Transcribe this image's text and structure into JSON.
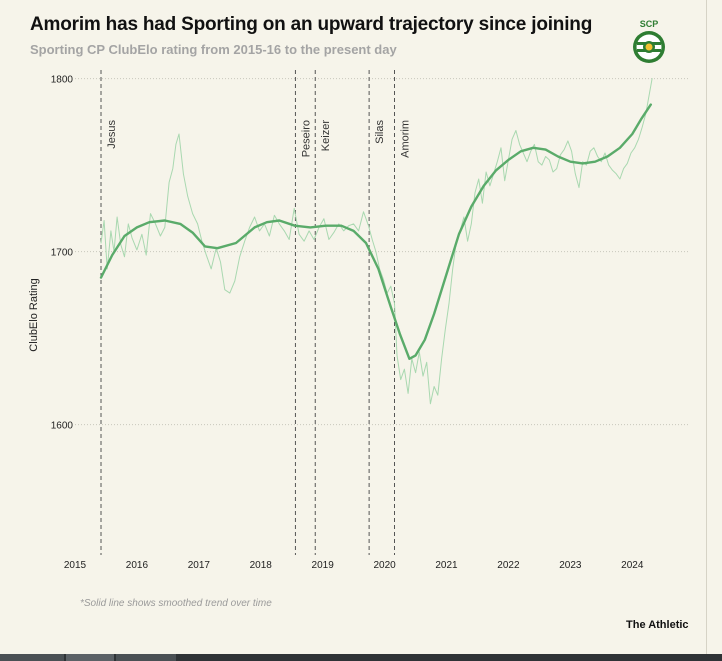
{
  "header": {
    "title": "Amorim has had Sporting on an upward trajectory since joining",
    "subtitle": "Sporting CP ClubElo rating from 2015-16 to the present day"
  },
  "logo": {
    "text": "SCP",
    "icon": "sporting-lion-crest-icon",
    "color": "#2e7d32"
  },
  "footer": {
    "note": "*Solid line shows smoothed trend over time",
    "brand": "The Athletic"
  },
  "colors": {
    "trend": "#5aab6a",
    "raw": "#a9d8b0",
    "grid": "#c9c7bd",
    "marker": "#555555"
  },
  "chart_data": {
    "type": "line",
    "title": "Amorim has had Sporting on an upward trajectory since joining",
    "subtitle": "Sporting CP ClubElo rating from 2015-16 to the present day",
    "xlabel": "",
    "ylabel": "ClubElo Rating",
    "xlim": [
      2015.0,
      2024.9
    ],
    "ylim": [
      1535,
      1805
    ],
    "x_ticks": [
      2015,
      2016,
      2017,
      2018,
      2019,
      2020,
      2021,
      2022,
      2023,
      2024
    ],
    "y_ticks": [
      1600,
      1700,
      1800
    ],
    "grid": "horizontal dotted",
    "coach_markers": [
      {
        "name": "Jesus",
        "x": 2015.42
      },
      {
        "name": "Peseiro",
        "x": 2018.56
      },
      {
        "name": "Keizer",
        "x": 2018.88
      },
      {
        "name": "Silas",
        "x": 2019.75
      },
      {
        "name": "Amorim",
        "x": 2020.16
      }
    ],
    "series": [
      {
        "style": "smoothed trend",
        "x": [
          2015.42,
          2015.6,
          2015.8,
          2016.0,
          2016.2,
          2016.45,
          2016.7,
          2016.9,
          2017.1,
          2017.3,
          2017.6,
          2017.9,
          2018.1,
          2018.3,
          2018.55,
          2018.8,
          2019.05,
          2019.3,
          2019.5,
          2019.7,
          2019.9,
          2020.1,
          2020.25,
          2020.4,
          2020.5,
          2020.65,
          2020.8,
          2021.0,
          2021.2,
          2021.4,
          2021.6,
          2021.8,
          2022.0,
          2022.2,
          2022.4,
          2022.6,
          2022.8,
          2023.0,
          2023.2,
          2023.4,
          2023.6,
          2023.8,
          2024.0,
          2024.15,
          2024.3
        ],
        "y": [
          1685,
          1698,
          1709,
          1714,
          1717,
          1718,
          1716,
          1711,
          1703,
          1702,
          1705,
          1714,
          1717,
          1718,
          1715,
          1714,
          1715,
          1715,
          1712,
          1705,
          1690,
          1668,
          1652,
          1638,
          1640,
          1649,
          1664,
          1687,
          1710,
          1726,
          1738,
          1747,
          1753,
          1758,
          1760,
          1759,
          1755,
          1752,
          1751,
          1752,
          1755,
          1760,
          1768,
          1777,
          1785
        ]
      },
      {
        "style": "raw rating",
        "x": [
          2015.42,
          2015.47,
          2015.52,
          2015.58,
          2015.63,
          2015.68,
          2015.74,
          2015.8,
          2015.86,
          2015.92,
          2016.0,
          2016.08,
          2016.15,
          2016.22,
          2016.3,
          2016.38,
          2016.45,
          2016.52,
          2016.58,
          2016.63,
          2016.68,
          2016.75,
          2016.82,
          2016.9,
          2016.98,
          2017.05,
          2017.12,
          2017.2,
          2017.28,
          2017.35,
          2017.42,
          2017.5,
          2017.58,
          2017.66,
          2017.74,
          2017.82,
          2017.9,
          2017.98,
          2018.06,
          2018.14,
          2018.22,
          2018.3,
          2018.38,
          2018.46,
          2018.54,
          2018.62,
          2018.7,
          2018.78,
          2018.86,
          2018.94,
          2019.02,
          2019.1,
          2019.18,
          2019.26,
          2019.34,
          2019.42,
          2019.5,
          2019.58,
          2019.66,
          2019.74,
          2019.8,
          2019.86,
          2019.92,
          2019.98,
          2020.04,
          2020.1,
          2020.16,
          2020.2,
          2020.26,
          2020.32,
          2020.38,
          2020.44,
          2020.5,
          2020.56,
          2020.62,
          2020.68,
          2020.74,
          2020.8,
          2020.86,
          2020.92,
          2020.98,
          2021.04,
          2021.1,
          2021.16,
          2021.22,
          2021.28,
          2021.34,
          2021.4,
          2021.46,
          2021.52,
          2021.58,
          2021.64,
          2021.7,
          2021.76,
          2021.82,
          2021.88,
          2021.94,
          2022.0,
          2022.06,
          2022.12,
          2022.18,
          2022.24,
          2022.3,
          2022.36,
          2022.42,
          2022.48,
          2022.54,
          2022.6,
          2022.66,
          2022.72,
          2022.78,
          2022.84,
          2022.9,
          2022.96,
          2023.02,
          2023.08,
          2023.14,
          2023.2,
          2023.26,
          2023.32,
          2023.38,
          2023.44,
          2023.5,
          2023.56,
          2023.62,
          2023.68,
          2023.74,
          2023.8,
          2023.86,
          2023.92,
          2023.98,
          2024.04,
          2024.1,
          2024.16,
          2024.22,
          2024.28,
          2024.32
        ],
        "y": [
          1705,
          1718,
          1690,
          1712,
          1700,
          1720,
          1704,
          1697,
          1716,
          1708,
          1701,
          1710,
          1698,
          1722,
          1716,
          1709,
          1714,
          1740,
          1748,
          1762,
          1768,
          1745,
          1732,
          1722,
          1716,
          1706,
          1698,
          1690,
          1702,
          1694,
          1678,
          1676,
          1683,
          1697,
          1706,
          1714,
          1720,
          1712,
          1716,
          1709,
          1721,
          1716,
          1712,
          1707,
          1725,
          1710,
          1706,
          1712,
          1707,
          1714,
          1719,
          1707,
          1711,
          1716,
          1712,
          1715,
          1716,
          1712,
          1723,
          1715,
          1707,
          1700,
          1690,
          1684,
          1676,
          1680,
          1670,
          1640,
          1626,
          1632,
          1618,
          1638,
          1630,
          1642,
          1628,
          1636,
          1612,
          1622,
          1617,
          1638,
          1655,
          1670,
          1690,
          1706,
          1712,
          1720,
          1706,
          1716,
          1734,
          1742,
          1728,
          1746,
          1738,
          1745,
          1752,
          1760,
          1741,
          1753,
          1765,
          1770,
          1762,
          1757,
          1752,
          1758,
          1762,
          1752,
          1750,
          1755,
          1753,
          1746,
          1748,
          1756,
          1759,
          1764,
          1758,
          1745,
          1737,
          1752,
          1750,
          1758,
          1760,
          1755,
          1752,
          1757,
          1750,
          1747,
          1745,
          1742,
          1748,
          1751,
          1757,
          1760,
          1765,
          1772,
          1780,
          1792,
          1800
        ]
      }
    ]
  },
  "taskbar": {
    "segments": [
      "",
      "",
      ""
    ]
  }
}
